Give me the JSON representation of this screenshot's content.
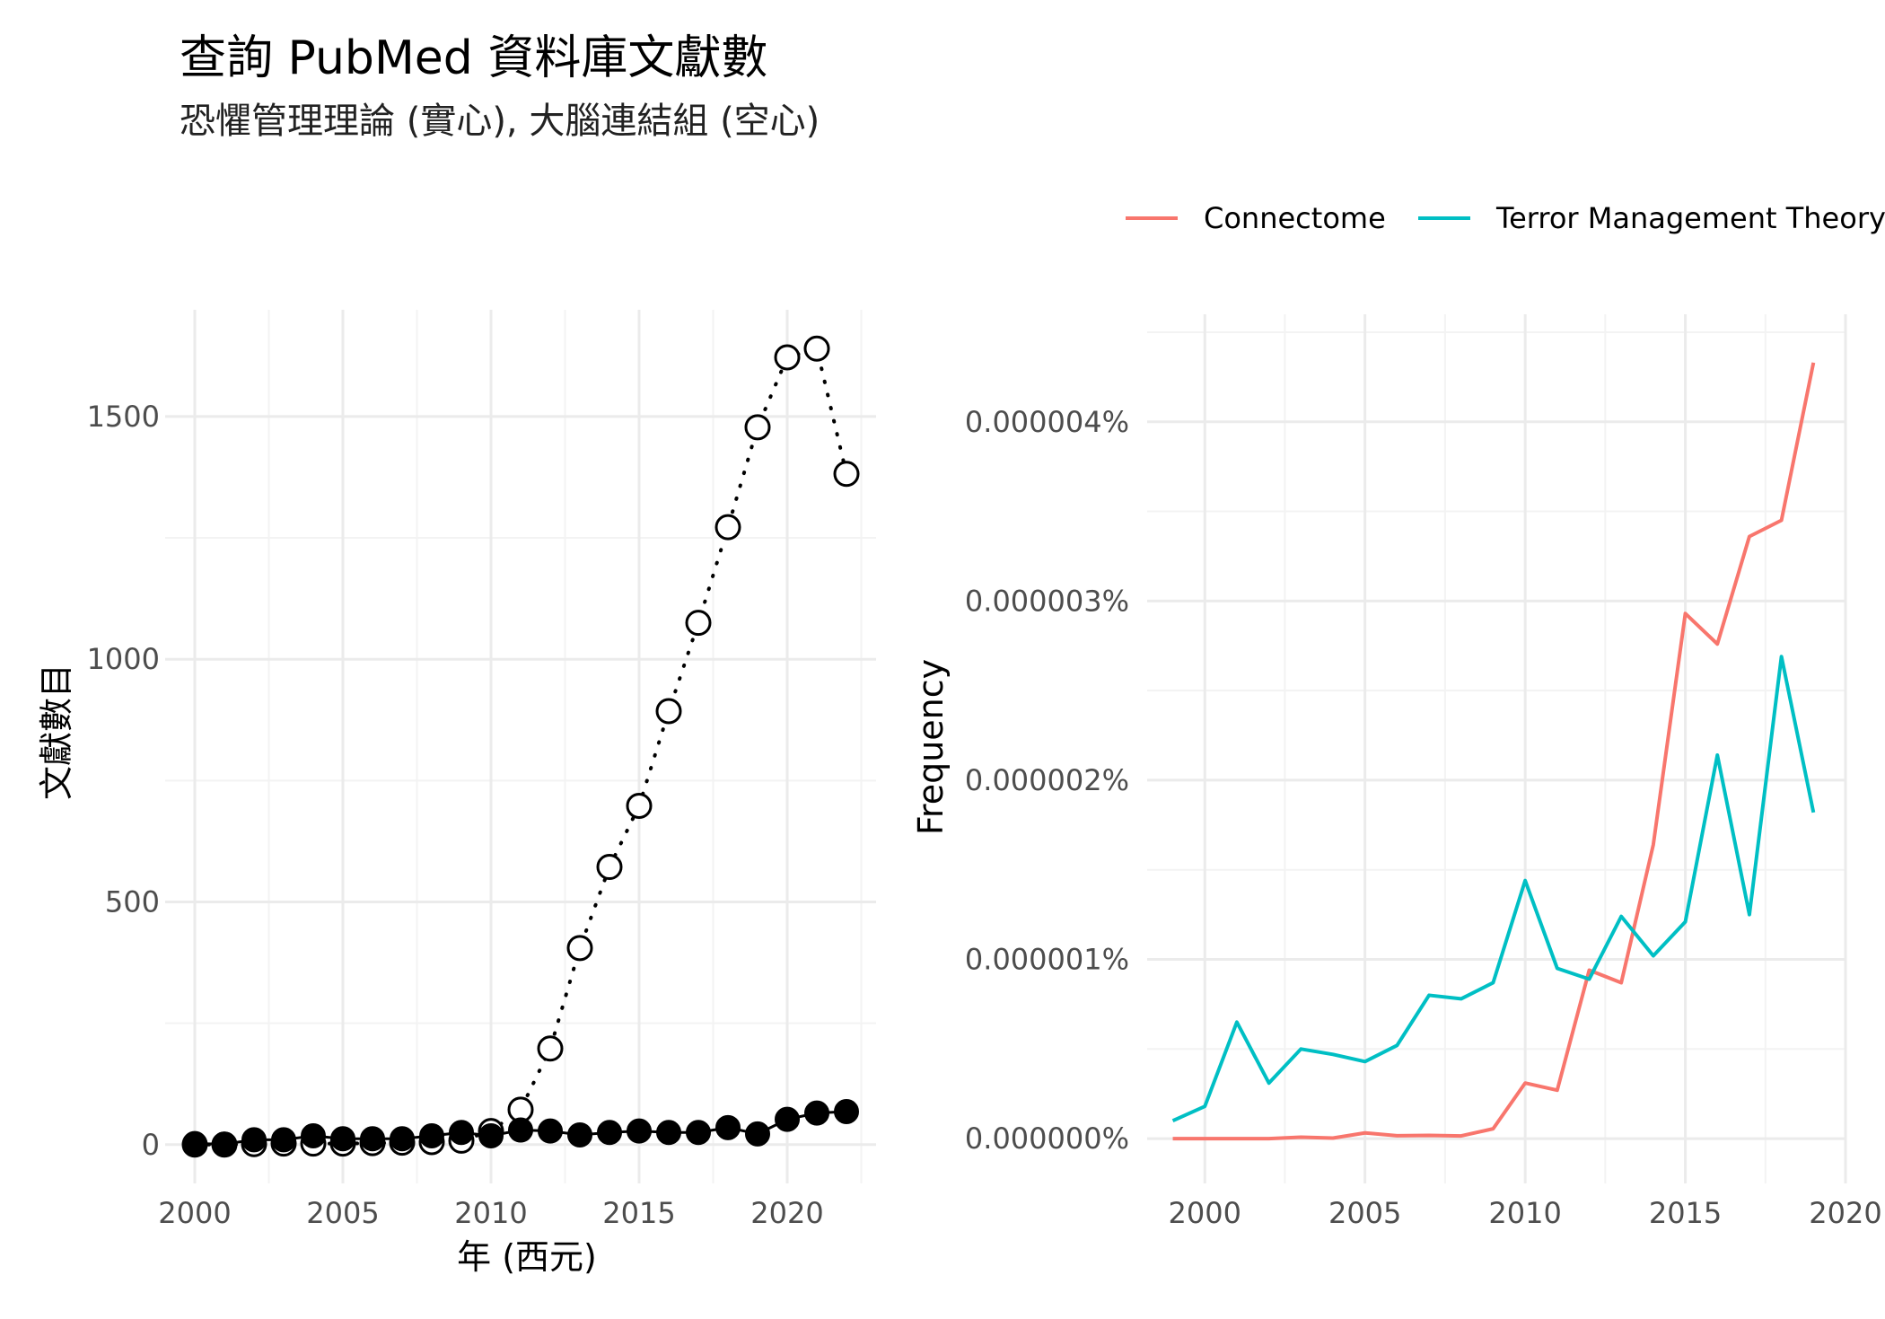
{
  "title": "查詢 PubMed 資料庫文獻數",
  "subtitle": "恐懼管理理論 (實心), 大腦連結組 (空心)",
  "chart_data": [
    {
      "type": "scatter",
      "xlabel": "年 (西元)",
      "ylabel": "文獻數目",
      "xlim": [
        1999,
        2023
      ],
      "ylim": [
        -80,
        1720
      ],
      "x_ticks": [
        2000,
        2005,
        2010,
        2015,
        2020
      ],
      "y_ticks": [
        0,
        500,
        1000,
        1500
      ],
      "x_tick_labels": [
        "2000",
        "2005",
        "2010",
        "2015",
        "2020"
      ],
      "y_tick_labels": [
        "0",
        "500",
        "1000",
        "1500"
      ],
      "grid": true,
      "series": [
        {
          "style": "solid points",
          "x": [
            2000,
            2001,
            2002,
            2003,
            2004,
            2005,
            2006,
            2007,
            2008,
            2009,
            2010,
            2011,
            2012,
            2013,
            2014,
            2015,
            2016,
            2017,
            2018,
            2019,
            2020,
            2021,
            2022
          ],
          "values": [
            2,
            1,
            10,
            10,
            18,
            12,
            12,
            12,
            18,
            25,
            18,
            30,
            28,
            20,
            25,
            28,
            25,
            25,
            35,
            22,
            52,
            65,
            68
          ]
        },
        {
          "style": "hollow points, dotted line",
          "x": [
            2000,
            2001,
            2002,
            2003,
            2004,
            2005,
            2006,
            2007,
            2008,
            2009,
            2010,
            2011,
            2012,
            2013,
            2014,
            2015,
            2016,
            2017,
            2018,
            2019,
            2020,
            2021,
            2022
          ],
          "values": [
            0,
            0,
            1,
            2,
            2,
            2,
            3,
            4,
            5,
            8,
            28,
            72,
            198,
            405,
            572,
            698,
            893,
            1075,
            1272,
            1478,
            1622,
            1640,
            1382
          ]
        }
      ]
    },
    {
      "type": "line",
      "xlabel": "",
      "ylabel": "Frequency",
      "xlim": [
        1998.2,
        2020
      ],
      "ylim": [
        -2.5e-07,
        4.6e-06
      ],
      "x_ticks": [
        2000,
        2005,
        2010,
        2015,
        2020
      ],
      "y_ticks": [
        0,
        1e-06,
        2e-06,
        3e-06,
        4e-06
      ],
      "x_tick_labels": [
        "2000",
        "2005",
        "2010",
        "2015",
        "2020"
      ],
      "y_tick_labels": [
        "0.000000%",
        "0.000001%",
        "0.000002%",
        "0.000003%",
        "0.000004%"
      ],
      "grid": true,
      "legend_position": "top-right",
      "series": [
        {
          "name": "Connectome",
          "color": "#F8766D",
          "x": [
            1999,
            2000,
            2001,
            2002,
            2003,
            2004,
            2005,
            2006,
            2007,
            2008,
            2009,
            2010,
            2011,
            2012,
            2013,
            2014,
            2015,
            2016,
            2017,
            2018,
            2019
          ],
          "values": [
            0,
            0,
            0,
            0,
            8e-09,
            3e-09,
            3.2e-08,
            1.6e-08,
            1.8e-08,
            1.5e-08,
            5.5e-08,
            3.1e-07,
            2.7e-07,
            9.4e-07,
            8.7e-07,
            1.64e-06,
            2.93e-06,
            2.76e-06,
            3.36e-06,
            3.45e-06,
            4.33e-06
          ]
        },
        {
          "name": "Terror Management Theory",
          "color": "#00BFC4",
          "x": [
            1999,
            2000,
            2001,
            2002,
            2003,
            2004,
            2005,
            2006,
            2007,
            2008,
            2009,
            2010,
            2011,
            2012,
            2013,
            2014,
            2015,
            2016,
            2017,
            2018,
            2019
          ],
          "values": [
            1e-07,
            1.8e-07,
            6.5e-07,
            3.1e-07,
            5e-07,
            4.7e-07,
            4.3e-07,
            5.2e-07,
            8e-07,
            7.8e-07,
            8.7e-07,
            1.44e-06,
            9.5e-07,
            8.9e-07,
            1.24e-06,
            1.02e-06,
            1.21e-06,
            2.14e-06,
            1.25e-06,
            2.69e-06,
            1.82e-06
          ]
        }
      ]
    }
  ]
}
